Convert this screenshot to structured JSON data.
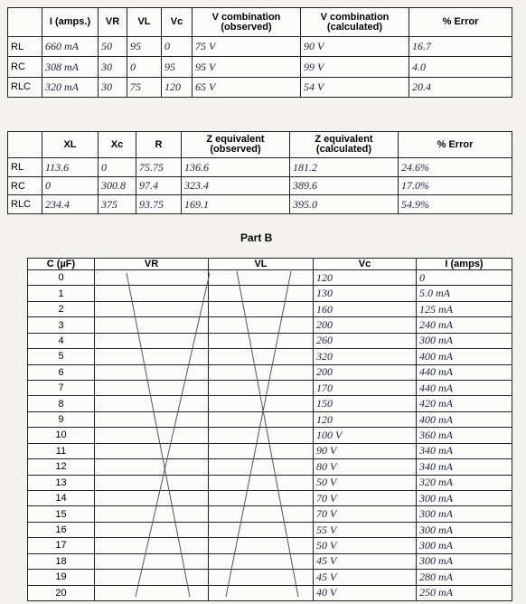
{
  "table1": {
    "columns": [
      "I (amps.)",
      "VR",
      "VL",
      "Vc",
      "V combination (observed)",
      "V combination (calculated)",
      "% Error"
    ],
    "rows": [
      [
        "RL",
        "660 mA",
        "50",
        "95",
        "0",
        "75 V",
        "90 V",
        "16.7"
      ],
      [
        "RC",
        "308 mA",
        "30",
        "0",
        "95",
        "95 V",
        "99 V",
        "4.0"
      ],
      [
        "RLC",
        "320 mA",
        "30",
        "75",
        "120",
        "65 V",
        "54 V",
        "20.4"
      ]
    ]
  },
  "table2": {
    "columns": [
      "XL",
      "Xc",
      "R",
      "Z equivalent (observed)",
      "Z equivalent (calculated)",
      "% Error"
    ],
    "rows": [
      [
        "RL",
        "113.6",
        "0",
        "75.75",
        "136.6",
        "181.2",
        "24.6%"
      ],
      [
        "RC",
        "0",
        "300.8",
        "97.4",
        "323.4",
        "389.6",
        "17.0%"
      ],
      [
        "RLC",
        "234.4",
        "375",
        "93.75",
        "169.1",
        "395.0",
        "54.9%"
      ]
    ]
  },
  "part_b_title": "Part B",
  "table3": {
    "columns": [
      "C (µF)",
      "VR",
      "VL",
      "Vc",
      "I (amps)"
    ],
    "rows": [
      [
        "0",
        "",
        "",
        "120",
        "0"
      ],
      [
        "1",
        "",
        "",
        "130",
        "5.0 mA"
      ],
      [
        "2",
        "",
        "",
        "160",
        "125 mA"
      ],
      [
        "3",
        "",
        "",
        "200",
        "240 mA"
      ],
      [
        "4",
        "",
        "",
        "260",
        "300 mA"
      ],
      [
        "5",
        "",
        "",
        "320",
        "400 mA"
      ],
      [
        "6",
        "",
        "",
        "200",
        "440 mA"
      ],
      [
        "7",
        "",
        "",
        "170",
        "440 mA"
      ],
      [
        "8",
        "",
        "",
        "150",
        "420 mA"
      ],
      [
        "9",
        "",
        "",
        "120",
        "400 mA"
      ],
      [
        "10",
        "",
        "",
        "100 V",
        "360 mA"
      ],
      [
        "11",
        "",
        "",
        "90 V",
        "340 mA"
      ],
      [
        "12",
        "",
        "",
        "80 V",
        "340 mA"
      ],
      [
        "13",
        "",
        "",
        "50 V",
        "320 mA"
      ],
      [
        "14",
        "",
        "",
        "70 V",
        "300 mA"
      ],
      [
        "15",
        "",
        "",
        "70 V",
        "300 mA"
      ],
      [
        "16",
        "",
        "",
        "55 V",
        "300 mA"
      ],
      [
        "17",
        "",
        "",
        "50 V",
        "300 mA"
      ],
      [
        "18",
        "",
        "",
        "45 V",
        "300 mA"
      ],
      [
        "19",
        "",
        "",
        "45 V",
        "280 mA"
      ],
      [
        "20",
        "",
        "",
        "40 V",
        "250 mA"
      ]
    ]
  }
}
